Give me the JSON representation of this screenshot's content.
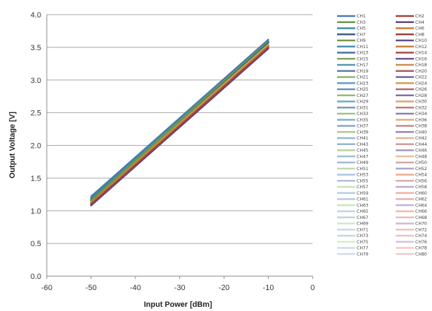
{
  "chart_data": {
    "type": "line",
    "xlabel": "Input Power  [dBm]",
    "ylabel": "Output Voltage [V]",
    "xlim": [
      -60,
      0
    ],
    "ylim": [
      0.0,
      4.0
    ],
    "x_ticks": [
      "-60",
      "-50",
      "-40",
      "-30",
      "-20",
      "-10",
      "0"
    ],
    "y_ticks": [
      "0.0",
      "0.5",
      "1.0",
      "1.5",
      "2.0",
      "2.5",
      "3.0",
      "3.5",
      "4.0"
    ],
    "grid": "horizontal",
    "legend_position": "right",
    "x": [
      -50,
      -10
    ],
    "series": [
      {
        "name": "CH1",
        "values": [
          1.22,
          3.62
        ],
        "color": "#4a7ab0"
      },
      {
        "name": "CH2",
        "values": [
          1.1,
          3.5
        ],
        "color": "#a04040"
      },
      {
        "name": "CH3",
        "values": [
          1.16,
          3.6
        ],
        "color": "#6a9a48"
      },
      {
        "name": "CH4",
        "values": [
          1.08,
          3.48
        ],
        "color": "#5a4880"
      },
      {
        "name": "CH5",
        "values": [
          1.2,
          3.6
        ],
        "color": "#3f8ca8"
      },
      {
        "name": "CH6",
        "values": [
          1.12,
          3.52
        ],
        "color": "#d07a30"
      },
      {
        "name": "CH7",
        "values": [
          1.18,
          3.58
        ],
        "color": "#3a5a88"
      },
      {
        "name": "CH8",
        "values": [
          1.1,
          3.5
        ],
        "color": "#984040"
      },
      {
        "name": "CH9",
        "values": [
          1.15,
          3.58
        ],
        "color": "#789848"
      },
      {
        "name": "CH10",
        "values": [
          1.08,
          3.48
        ],
        "color": "#604e90"
      },
      {
        "name": "CH11",
        "values": [
          1.19,
          3.6
        ],
        "color": "#4890b0"
      },
      {
        "name": "CH12",
        "values": [
          1.12,
          3.52
        ],
        "color": "#c88038"
      },
      {
        "name": "CH13",
        "values": [
          1.17,
          3.58
        ],
        "color": "#4870a0"
      },
      {
        "name": "CH14",
        "values": [
          1.1,
          3.5
        ],
        "color": "#a84848"
      },
      {
        "name": "CH15",
        "values": [
          1.16,
          3.57
        ],
        "color": "#84a458"
      },
      {
        "name": "CH16",
        "values": [
          1.09,
          3.49
        ],
        "color": "#6a5898"
      },
      {
        "name": "CH17",
        "values": [
          1.18,
          3.59
        ],
        "color": "#5098b8"
      },
      {
        "name": "CH18",
        "values": [
          1.12,
          3.52
        ],
        "color": "#d08c48"
      },
      {
        "name": "CH19",
        "values": [
          1.17,
          3.58
        ],
        "color": "#5880b0"
      },
      {
        "name": "CH20",
        "values": [
          1.11,
          3.51
        ],
        "color": "#b05858"
      },
      {
        "name": "CH21",
        "values": [
          1.16,
          3.57
        ],
        "color": "#90b068"
      },
      {
        "name": "CH22",
        "values": [
          1.09,
          3.49
        ],
        "color": "#7464a4"
      },
      {
        "name": "CH23",
        "values": [
          1.18,
          3.59
        ],
        "color": "#60a0c0"
      },
      {
        "name": "CH24",
        "values": [
          1.13,
          3.53
        ],
        "color": "#d89858"
      },
      {
        "name": "CH25",
        "values": [
          1.17,
          3.58
        ],
        "color": "#6890b8"
      },
      {
        "name": "CH26",
        "values": [
          1.11,
          3.51
        ],
        "color": "#b86868"
      },
      {
        "name": "CH27",
        "values": [
          1.15,
          3.57
        ],
        "color": "#98b874"
      },
      {
        "name": "CH28",
        "values": [
          1.1,
          3.5
        ],
        "color": "#8070ac"
      },
      {
        "name": "CH29",
        "values": [
          1.18,
          3.59
        ],
        "color": "#70a8c8"
      },
      {
        "name": "CH30",
        "values": [
          1.13,
          3.53
        ],
        "color": "#e0a468"
      },
      {
        "name": "CH31",
        "values": [
          1.16,
          3.58
        ],
        "color": "#7898c0"
      },
      {
        "name": "CH32",
        "values": [
          1.12,
          3.52
        ],
        "color": "#c07878"
      },
      {
        "name": "CH33",
        "values": [
          1.15,
          3.56
        ],
        "color": "#a4c084"
      },
      {
        "name": "CH34",
        "values": [
          1.1,
          3.5
        ],
        "color": "#8c7cb4"
      },
      {
        "name": "CH35",
        "values": [
          1.17,
          3.58
        ],
        "color": "#80b0d0"
      },
      {
        "name": "CH36",
        "values": [
          1.13,
          3.53
        ],
        "color": "#e4ac78"
      },
      {
        "name": "CH37",
        "values": [
          1.16,
          3.57
        ],
        "color": "#88a4c8"
      },
      {
        "name": "CH38",
        "values": [
          1.12,
          3.52
        ],
        "color": "#c88888"
      },
      {
        "name": "CH39",
        "values": [
          1.15,
          3.56
        ],
        "color": "#b0c890"
      },
      {
        "name": "CH40",
        "values": [
          1.11,
          3.51
        ],
        "color": "#9888bc"
      },
      {
        "name": "CH41",
        "values": [
          1.17,
          3.58
        ],
        "color": "#90b8d8"
      },
      {
        "name": "CH42",
        "values": [
          1.14,
          3.54
        ],
        "color": "#e8b488"
      },
      {
        "name": "CH43",
        "values": [
          1.16,
          3.57
        ],
        "color": "#98b0d0"
      },
      {
        "name": "CH44",
        "values": [
          1.12,
          3.52
        ],
        "color": "#d09898"
      },
      {
        "name": "CH45",
        "values": [
          1.15,
          3.56
        ],
        "color": "#bcd0a0"
      },
      {
        "name": "CH46",
        "values": [
          1.11,
          3.51
        ],
        "color": "#a498c4"
      },
      {
        "name": "CH47",
        "values": [
          1.17,
          3.58
        ],
        "color": "#9cc0dc"
      },
      {
        "name": "CH48",
        "values": [
          1.14,
          3.54
        ],
        "color": "#ecbc98"
      },
      {
        "name": "CH49",
        "values": [
          1.16,
          3.57
        ],
        "color": "#a4b8d4"
      },
      {
        "name": "CH50",
        "values": [
          1.13,
          3.53
        ],
        "color": "#d8a4a4"
      },
      {
        "name": "CH51",
        "values": [
          1.15,
          3.56
        ],
        "color": "#c4d8ac"
      },
      {
        "name": "CH52",
        "values": [
          1.12,
          3.52
        ],
        "color": "#b0a4cc"
      },
      {
        "name": "CH53",
        "values": [
          1.16,
          3.57
        ],
        "color": "#a8c8e0"
      },
      {
        "name": "CH54",
        "values": [
          1.14,
          3.54
        ],
        "color": "#f0a890"
      },
      {
        "name": "CH55",
        "values": [
          1.16,
          3.57
        ],
        "color": "#b0c0d8"
      },
      {
        "name": "CH56",
        "values": [
          1.13,
          3.53
        ],
        "color": "#dcacac"
      },
      {
        "name": "CH57",
        "values": [
          1.15,
          3.56
        ],
        "color": "#cce0b4"
      },
      {
        "name": "CH58",
        "values": [
          1.12,
          3.52
        ],
        "color": "#b8acd0"
      },
      {
        "name": "CH59",
        "values": [
          1.16,
          3.57
        ],
        "color": "#b4d0e4"
      },
      {
        "name": "CH60",
        "values": [
          1.14,
          3.54
        ],
        "color": "#f4b0a0"
      },
      {
        "name": "CH61",
        "values": [
          1.15,
          3.56
        ],
        "color": "#bcc8dc"
      },
      {
        "name": "CH62",
        "values": [
          1.13,
          3.53
        ],
        "color": "#e0b4b4"
      },
      {
        "name": "CH63",
        "values": [
          1.15,
          3.56
        ],
        "color": "#d0e4bc"
      },
      {
        "name": "CH64",
        "values": [
          1.12,
          3.52
        ],
        "color": "#c0b4d4"
      },
      {
        "name": "CH65",
        "values": [
          1.16,
          3.57
        ],
        "color": "#bcd4e8"
      },
      {
        "name": "CH66",
        "values": [
          1.14,
          3.54
        ],
        "color": "#f4b8a8"
      },
      {
        "name": "CH67",
        "values": [
          1.15,
          3.56
        ],
        "color": "#c4d0e0"
      },
      {
        "name": "CH68",
        "values": [
          1.13,
          3.53
        ],
        "color": "#e4bcbc"
      },
      {
        "name": "CH69",
        "values": [
          1.15,
          3.55
        ],
        "color": "#d4e8c4"
      },
      {
        "name": "CH70",
        "values": [
          1.13,
          3.53
        ],
        "color": "#c8bcd8"
      },
      {
        "name": "CH71",
        "values": [
          1.15,
          3.56
        ],
        "color": "#c4d8ec"
      },
      {
        "name": "CH72",
        "values": [
          1.14,
          3.54
        ],
        "color": "#f4c0b0"
      },
      {
        "name": "CH73",
        "values": [
          1.15,
          3.56
        ],
        "color": "#ccd4e4"
      },
      {
        "name": "CH74",
        "values": [
          1.13,
          3.53
        ],
        "color": "#e8c4c4"
      },
      {
        "name": "CH75",
        "values": [
          1.15,
          3.55
        ],
        "color": "#d8ecc8"
      },
      {
        "name": "CH76",
        "values": [
          1.13,
          3.53
        ],
        "color": "#d0c4dc"
      },
      {
        "name": "CH77",
        "values": [
          1.15,
          3.56
        ],
        "color": "#ccdcf0"
      },
      {
        "name": "CH78",
        "values": [
          1.14,
          3.54
        ],
        "color": "#f8c8b8"
      },
      {
        "name": "CH79",
        "values": [
          1.15,
          3.55
        ],
        "color": "#d4dce8"
      },
      {
        "name": "CH80",
        "values": [
          1.14,
          3.54
        ],
        "color": "#eccccc"
      }
    ]
  }
}
